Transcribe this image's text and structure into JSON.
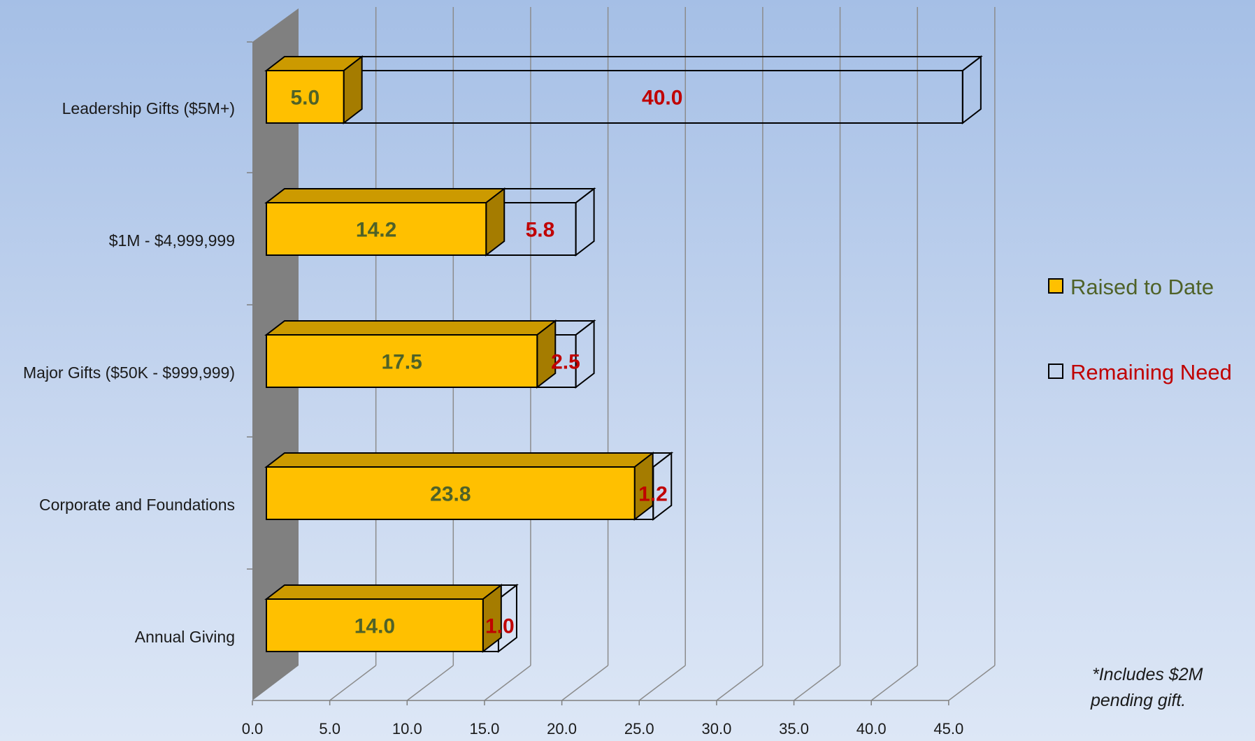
{
  "chart_data": {
    "type": "bar",
    "orientation": "horizontal",
    "stacked": true,
    "style": "3d",
    "categories": [
      "Leadership Gifts ($5M+)",
      "$1M - $4,999,999",
      "Major Gifts ($50K - $999,999)",
      "Corporate and Foundations",
      "Annual Giving"
    ],
    "series": [
      {
        "name": "Raised to Date",
        "values": [
          5.0,
          14.2,
          17.5,
          23.8,
          14.0
        ],
        "labels": [
          "5.0",
          "14.2",
          "17.5",
          "23.8",
          "14.0"
        ]
      },
      {
        "name": "Remaining Need",
        "values": [
          40.0,
          5.8,
          2.5,
          1.2,
          1.0
        ],
        "labels": [
          "40.0",
          "5.8",
          "2.5",
          "1.2",
          "1.0"
        ]
      }
    ],
    "xlim": [
      0,
      45
    ],
    "xticks": [
      0,
      5,
      10,
      15,
      20,
      25,
      30,
      35,
      40,
      45
    ],
    "xtick_labels": [
      "0.0",
      "5.0",
      "10.0",
      "15.0",
      "20.0",
      "25.0",
      "30.0",
      "35.0",
      "40.0",
      "45.0"
    ],
    "grid": true,
    "legend_position": "right"
  },
  "footnote": {
    "line1": "*Includes $2M",
    "line2": "pending gift."
  },
  "colors": {
    "raised_front": "#FFC000",
    "raised_top": "#CC9A00",
    "raised_side": "#A57C00",
    "raised_label": "#4F6228",
    "remain_label": "#C00000",
    "legend_raised_text": "#4F6228",
    "legend_remain_text": "#C00000",
    "wall": "#808080",
    "gridline": "#8C8C8C"
  }
}
